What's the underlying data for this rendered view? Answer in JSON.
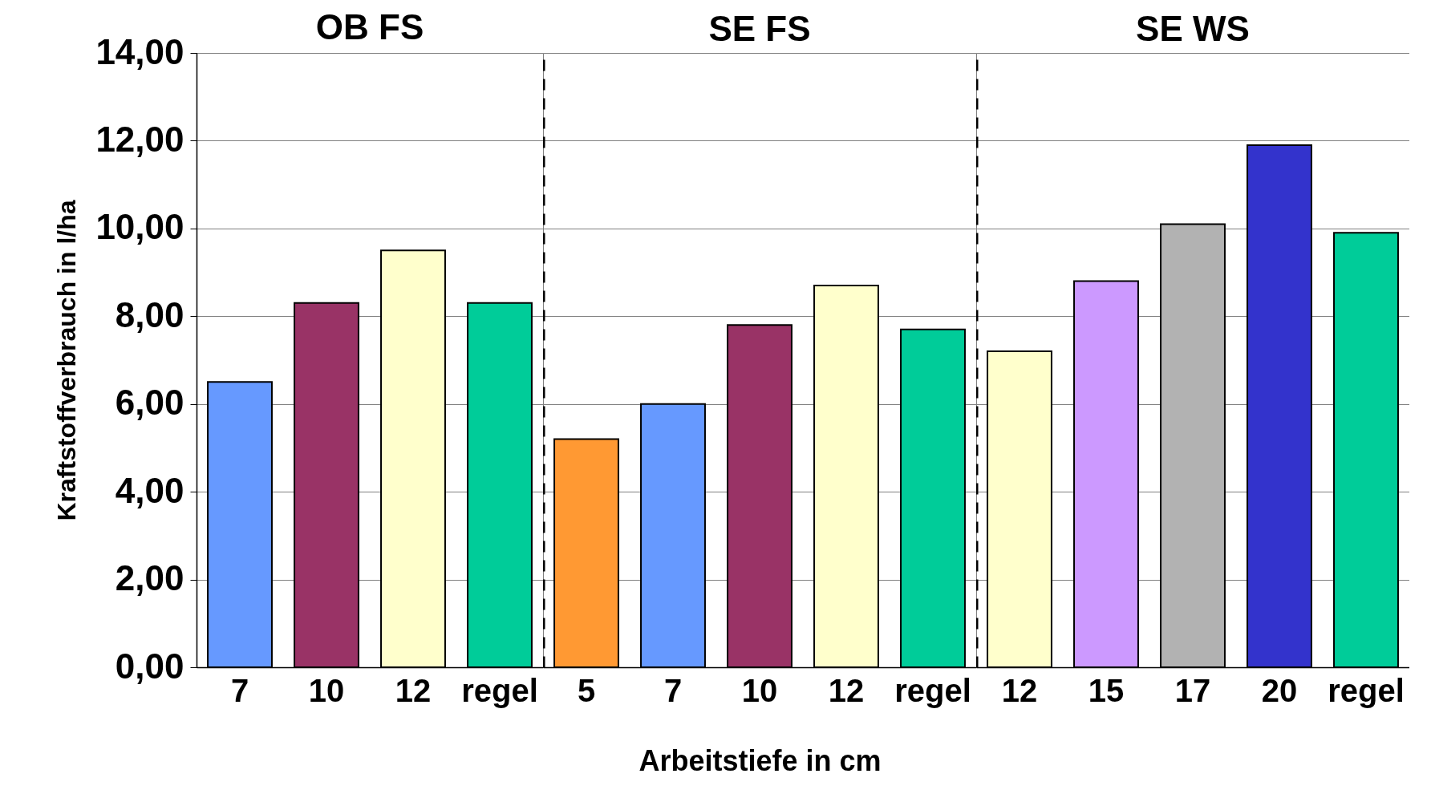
{
  "chart_data": [
    {
      "type": "bar",
      "title": "OB FS",
      "ylabel": "Kraftstoffverbrauch in l/ha",
      "categories": [
        "7",
        "10",
        "12",
        "regel"
      ],
      "values": [
        6.5,
        8.3,
        9.5,
        8.3
      ],
      "colors": [
        "#6699ff",
        "#993366",
        "#ffffcc",
        "#00cc99"
      ],
      "ylim": [
        0,
        14
      ],
      "yticks": [
        {
          "value": 0,
          "label": "0,00"
        },
        {
          "value": 2,
          "label": "2,00"
        },
        {
          "value": 4,
          "label": "4,00"
        },
        {
          "value": 6,
          "label": "6,00"
        },
        {
          "value": 8,
          "label": "8,00"
        },
        {
          "value": 10,
          "label": "10,00"
        },
        {
          "value": 12,
          "label": "12,00"
        },
        {
          "value": 14,
          "label": "14,00"
        }
      ],
      "grid": "y"
    },
    {
      "type": "bar",
      "title": "SE FS",
      "xlabel": "Arbeitstiefe in cm",
      "categories": [
        "5",
        "7",
        "10",
        "12",
        "regel"
      ],
      "values": [
        5.2,
        6.0,
        7.8,
        8.7,
        7.7
      ],
      "colors": [
        "#ff9933",
        "#6699ff",
        "#993366",
        "#ffffcc",
        "#00cc99"
      ],
      "ylim": [
        0,
        14
      ],
      "yticks": [
        0,
        2,
        4,
        6,
        8,
        10,
        12,
        14
      ],
      "grid": "y",
      "tick_labels": "x"
    },
    {
      "type": "bar",
      "title": "SE WS",
      "categories": [
        "12",
        "15",
        "17",
        "20",
        "regel"
      ],
      "values": [
        7.2,
        8.8,
        10.1,
        11.9,
        9.9
      ],
      "colors": [
        "#ffffcc",
        "#cc99ff",
        "#b2b2b2",
        "#3333cc",
        "#00cc99"
      ],
      "ylim": [
        0,
        14
      ],
      "yticks": [
        0,
        2,
        4,
        6,
        8,
        10,
        12,
        14
      ],
      "grid": "y",
      "tick_labels": "x"
    }
  ]
}
